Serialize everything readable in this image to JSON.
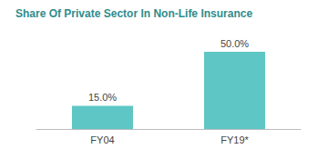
{
  "chart_data": {
    "type": "bar",
    "title": "Share Of Private Sector In Non-Life Insurance",
    "categories": [
      "FY04",
      "FY19*"
    ],
    "values": [
      15.0,
      50.0
    ],
    "value_labels": [
      "15.0%",
      "50.0%"
    ],
    "color": "#5ec6c4",
    "data_labels": true,
    "tick_labels": "x",
    "grid": false
  }
}
